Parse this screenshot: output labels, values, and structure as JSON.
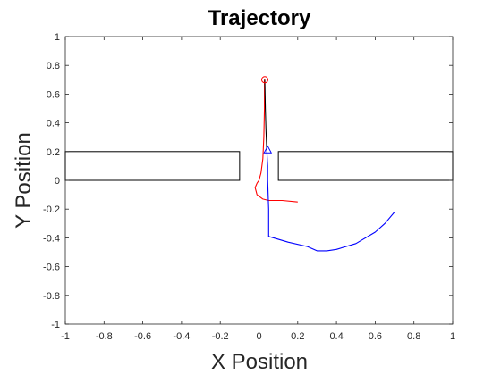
{
  "chart_data": {
    "type": "line",
    "title": "Trajectory",
    "xlabel": "X Position",
    "ylabel": "Y Position",
    "xlim": [
      -1,
      1
    ],
    "ylim": [
      -1,
      1
    ],
    "xticks": [
      "-1",
      "-0.8",
      "-0.6",
      "-0.4",
      "-0.2",
      "0",
      "0.2",
      "0.4",
      "0.6",
      "0.8",
      "1"
    ],
    "yticks": [
      "1",
      "0.8",
      "0.6",
      "0.4",
      "0.2",
      "0",
      "-0.2",
      "-0.4",
      "-0.6",
      "-0.8",
      "-1"
    ],
    "grid": false,
    "legend": "none",
    "obstacles": [
      {
        "x": [
          -1,
          -0.1
        ],
        "y": [
          0,
          0.2
        ]
      },
      {
        "x": [
          0.1,
          1
        ],
        "y": [
          0,
          0.2
        ]
      }
    ],
    "series": [
      {
        "color": "#ff0000",
        "x": [
          0.2,
          0.12,
          0.05,
          0.02,
          -0.01,
          -0.02,
          -0.01,
          0.0,
          0.01,
          0.02,
          0.025,
          0.028,
          0.028
        ],
        "y": [
          -0.15,
          -0.14,
          -0.14,
          -0.13,
          -0.1,
          -0.05,
          -0.02,
          0.0,
          0.05,
          0.15,
          0.3,
          0.5,
          0.7
        ]
      },
      {
        "color": "#0000ff",
        "x": [
          0.7,
          0.65,
          0.6,
          0.5,
          0.4,
          0.35,
          0.3,
          0.25,
          0.15,
          0.05,
          0.05,
          0.045,
          0.045,
          0.04
        ],
        "y": [
          -0.22,
          -0.3,
          -0.36,
          -0.44,
          -0.48,
          -0.49,
          -0.49,
          -0.46,
          -0.43,
          -0.39,
          -0.2,
          0.0,
          0.1,
          0.21
        ]
      },
      {
        "color": "#000000",
        "x": [
          0.03,
          0.033,
          0.036,
          0.04
        ],
        "y": [
          0.7,
          0.5,
          0.35,
          0.21
        ]
      }
    ],
    "markers": [
      {
        "shape": "circle",
        "color": "#ff0000",
        "x": 0.03,
        "y": 0.7
      },
      {
        "shape": "triangle",
        "color": "#0000ff",
        "x": 0.045,
        "y": 0.21
      }
    ]
  }
}
